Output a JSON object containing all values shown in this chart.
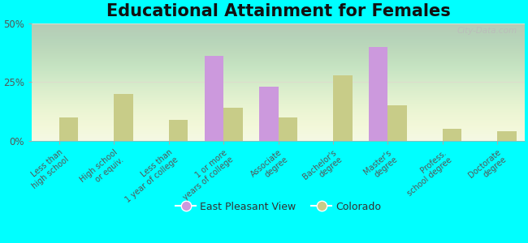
{
  "title": "Educational Attainment for Females",
  "categories": [
    "Less than\nhigh school",
    "High school\nor equiv.",
    "Less than\n1 year of college",
    "1 or more\nyears of college",
    "Associate\ndegree",
    "Bachelor's\ndegree",
    "Master's\ndegree",
    "Profess.\nschool degree",
    "Doctorate\ndegree"
  ],
  "epv_values": [
    0,
    0,
    0,
    36,
    23,
    0,
    40,
    0,
    0
  ],
  "co_values": [
    10,
    20,
    9,
    14,
    10,
    28,
    15,
    5,
    4
  ],
  "epv_color": "#cc99dd",
  "co_color": "#c8cc88",
  "epv_label": "East Pleasant View",
  "co_label": "Colorado",
  "ylim": [
    0,
    50
  ],
  "yticks": [
    0,
    25,
    50
  ],
  "ytick_labels": [
    "0%",
    "25%",
    "50%"
  ],
  "fig_bg_color": "#00ffff",
  "plot_bg_color": "#f0f5e0",
  "grid_color": "#ddddcc",
  "watermark": "City-Data.com",
  "title_fontsize": 15,
  "tick_fontsize": 7,
  "legend_fontsize": 9,
  "bar_width": 0.35
}
